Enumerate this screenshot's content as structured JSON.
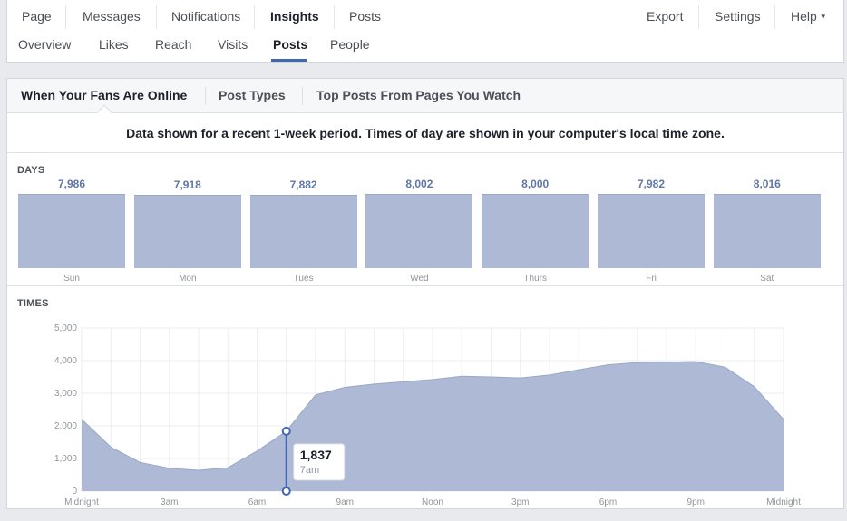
{
  "topnav": {
    "left": [
      "Page",
      "Messages",
      "Notifications",
      "Insights",
      "Posts"
    ],
    "active": "Insights",
    "right": [
      "Export",
      "Settings",
      "Help"
    ]
  },
  "subnav": {
    "items": [
      "Overview",
      "Likes",
      "Reach",
      "Visits",
      "Posts",
      "People"
    ],
    "active": "Posts"
  },
  "tabs": [
    "When Your Fans Are Online",
    "Post Types",
    "Top Posts From Pages You Watch"
  ],
  "notice": "Data shown for a recent 1-week period. Times of day are shown in your computer's local time zone.",
  "days_label": "DAYS",
  "times_label": "TIMES",
  "colors": {
    "bar": "#adb9d5",
    "area": "#adb9d5",
    "accent": "#4267b2",
    "value_text": "#5f77a7"
  },
  "chart_data": [
    {
      "type": "bar",
      "categories": [
        "Sun",
        "Mon",
        "Tues",
        "Wed",
        "Thurs",
        "Fri",
        "Sat"
      ],
      "values": [
        7986,
        7918,
        7882,
        8002,
        8000,
        7982,
        8016
      ],
      "value_labels": [
        "7,986",
        "7,918",
        "7,882",
        "8,002",
        "8,000",
        "7,982",
        "8,016"
      ]
    },
    {
      "type": "area",
      "x": [
        0,
        1,
        2,
        3,
        4,
        5,
        6,
        7,
        8,
        9,
        10,
        11,
        12,
        13,
        14,
        15,
        16,
        17,
        18,
        19,
        20,
        21,
        22,
        23,
        24
      ],
      "y": [
        2200,
        1350,
        880,
        700,
        640,
        720,
        1230,
        1837,
        2950,
        3180,
        3280,
        3350,
        3420,
        3520,
        3500,
        3470,
        3560,
        3720,
        3870,
        3940,
        3950,
        3970,
        3800,
        3200,
        2200
      ],
      "ylim": [
        0,
        5000
      ],
      "yticks": [
        0,
        1000,
        2000,
        3000,
        4000,
        5000
      ],
      "ytick_labels": [
        "0",
        "1,000",
        "2,000",
        "3,000",
        "4,000",
        "5,000"
      ],
      "xtick_positions": [
        0,
        3,
        6,
        9,
        12,
        15,
        18,
        21,
        24
      ],
      "xtick_labels": [
        "Midnight",
        "3am",
        "6am",
        "9am",
        "Noon",
        "3pm",
        "6pm",
        "9pm",
        "Midnight"
      ],
      "tooltip": {
        "x": 7,
        "value": "1,837",
        "label": "7am"
      }
    }
  ]
}
